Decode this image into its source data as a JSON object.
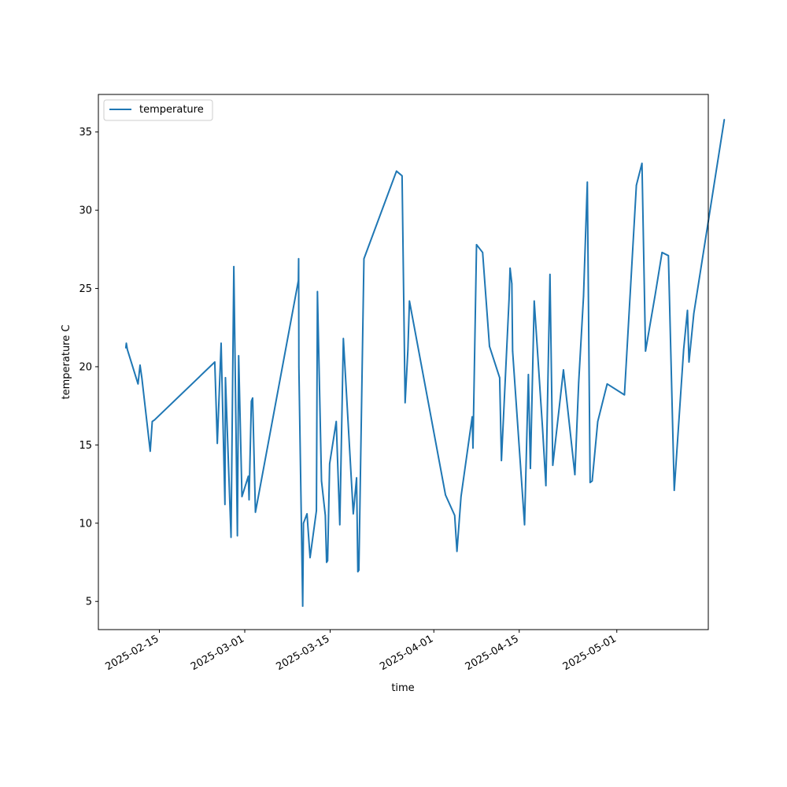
{
  "chart_data": {
    "type": "line",
    "xlabel": "time",
    "ylabel": "temperature C",
    "x_axis_type": "date",
    "xlim": [
      "2025-02-05",
      "2025-05-16"
    ],
    "ylim": [
      3.2,
      37.4
    ],
    "x_ticks": [
      "2025-02-15",
      "2025-03-01",
      "2025-03-15",
      "2025-04-01",
      "2025-04-15",
      "2025-05-01"
    ],
    "y_ticks": [
      5,
      10,
      15,
      20,
      25,
      30,
      35
    ],
    "grid": false,
    "legend_position": "top-left",
    "series": [
      {
        "name": "temperature",
        "color": "#1f77b4",
        "points": [
          [
            "2025-02-09T12:00",
            21.2
          ],
          [
            "2025-02-09T14:00",
            21.5
          ],
          [
            "2025-02-09T18:00",
            21.1
          ],
          [
            "2025-02-11T12:00",
            18.9
          ],
          [
            "2025-02-11T20:00",
            20.1
          ],
          [
            "2025-02-12T03:00",
            19.3
          ],
          [
            "2025-02-13T12:00",
            14.6
          ],
          [
            "2025-02-13T20:00",
            16.5
          ],
          [
            "2025-02-14T05:00",
            16.6
          ],
          [
            "2025-02-24T02:00",
            20.3
          ],
          [
            "2025-02-24T12:00",
            15.1
          ],
          [
            "2025-02-25T03:00",
            21.5
          ],
          [
            "2025-02-25T18:00",
            11.2
          ],
          [
            "2025-02-25T20:00",
            19.3
          ],
          [
            "2025-02-26T18:00",
            9.1
          ],
          [
            "2025-02-27T05:00",
            26.4
          ],
          [
            "2025-02-27T19:00",
            9.2
          ],
          [
            "2025-02-28T00:00",
            20.7
          ],
          [
            "2025-02-28T13:00",
            11.7
          ],
          [
            "2025-03-01T14:00",
            13.0
          ],
          [
            "2025-03-01T17:00",
            11.5
          ],
          [
            "2025-03-02T02:00",
            17.8
          ],
          [
            "2025-03-02T07:00",
            18.0
          ],
          [
            "2025-03-02T18:00",
            10.7
          ],
          [
            "2025-03-09T19:00",
            25.5
          ],
          [
            "2025-03-09T20:00",
            26.9
          ],
          [
            "2025-03-09T21:00",
            20.0
          ],
          [
            "2025-03-10T12:00",
            4.7
          ],
          [
            "2025-03-10T15:00",
            10.0
          ],
          [
            "2025-03-11T05:00",
            10.6
          ],
          [
            "2025-03-11T17:00",
            7.8
          ],
          [
            "2025-03-12T18:00",
            10.8
          ],
          [
            "2025-03-12T22:00",
            24.8
          ],
          [
            "2025-03-13T14:00",
            12.7
          ],
          [
            "2025-03-14T05:00",
            10.5
          ],
          [
            "2025-03-14T10:00",
            7.5
          ],
          [
            "2025-03-14T14:00",
            7.6
          ],
          [
            "2025-03-14T22:00",
            13.8
          ],
          [
            "2025-03-16T00:00",
            16.5
          ],
          [
            "2025-03-16T14:00",
            9.9
          ],
          [
            "2025-03-17T04:00",
            21.8
          ],
          [
            "2025-03-18T19:00",
            10.6
          ],
          [
            "2025-03-19T08:00",
            12.9
          ],
          [
            "2025-03-19T13:00",
            6.9
          ],
          [
            "2025-03-19T17:00",
            7.0
          ],
          [
            "2025-03-20T13:00",
            26.9
          ],
          [
            "2025-03-25T21:00",
            32.5
          ],
          [
            "2025-03-26T19:00",
            32.2
          ],
          [
            "2025-03-27T07:00",
            17.7
          ],
          [
            "2025-03-27T18:00",
            21.1
          ],
          [
            "2025-03-28T00:00",
            24.2
          ],
          [
            "2025-04-02T22:00",
            11.8
          ],
          [
            "2025-04-04T10:00",
            10.5
          ],
          [
            "2025-04-04T19:00",
            8.2
          ],
          [
            "2025-04-05T11:00",
            11.7
          ],
          [
            "2025-04-07T07:00",
            16.8
          ],
          [
            "2025-04-07T10:00",
            14.8
          ],
          [
            "2025-04-08T00:00",
            27.8
          ],
          [
            "2025-04-09T00:00",
            27.3
          ],
          [
            "2025-04-10T03:00",
            21.3
          ],
          [
            "2025-04-11T19:00",
            19.3
          ],
          [
            "2025-04-12T02:00",
            14.0
          ],
          [
            "2025-04-13T08:00",
            24.3
          ],
          [
            "2025-04-13T12:00",
            26.3
          ],
          [
            "2025-04-13T19:00",
            25.3
          ],
          [
            "2025-04-13T22:00",
            21.0
          ],
          [
            "2025-04-15T21:00",
            9.9
          ],
          [
            "2025-04-16T12:00",
            19.5
          ],
          [
            "2025-04-16T20:00",
            13.5
          ],
          [
            "2025-04-17T11:00",
            24.2
          ],
          [
            "2025-04-18T20:00",
            16.0
          ],
          [
            "2025-04-19T09:00",
            12.4
          ],
          [
            "2025-04-20T01:00",
            25.9
          ],
          [
            "2025-04-20T12:00",
            13.7
          ],
          [
            "2025-04-22T06:00",
            19.8
          ],
          [
            "2025-04-24T03:00",
            13.1
          ],
          [
            "2025-04-24T18:00",
            19.0
          ],
          [
            "2025-04-25T13:00",
            24.5
          ],
          [
            "2025-04-26T04:00",
            31.8
          ],
          [
            "2025-04-26T15:00",
            12.6
          ],
          [
            "2025-04-26T23:00",
            12.7
          ],
          [
            "2025-04-27T21:00",
            16.5
          ],
          [
            "2025-04-29T10:00",
            18.9
          ],
          [
            "2025-05-02T06:00",
            18.2
          ],
          [
            "2025-05-04T05:00",
            31.6
          ],
          [
            "2025-05-05T03:00",
            33.0
          ],
          [
            "2025-05-05T17:00",
            21.0
          ],
          [
            "2025-05-07T07:00",
            24.6
          ],
          [
            "2025-05-08T10:00",
            27.3
          ],
          [
            "2025-05-09T11:00",
            27.1
          ],
          [
            "2025-05-10T10:00",
            12.1
          ],
          [
            "2025-05-11T23:00",
            21.1
          ],
          [
            "2025-05-12T14:00",
            23.6
          ],
          [
            "2025-05-12T20:00",
            20.3
          ],
          [
            "2025-05-13T15:00",
            23.4
          ],
          [
            "2025-05-18T15:00",
            35.8
          ]
        ]
      }
    ]
  }
}
